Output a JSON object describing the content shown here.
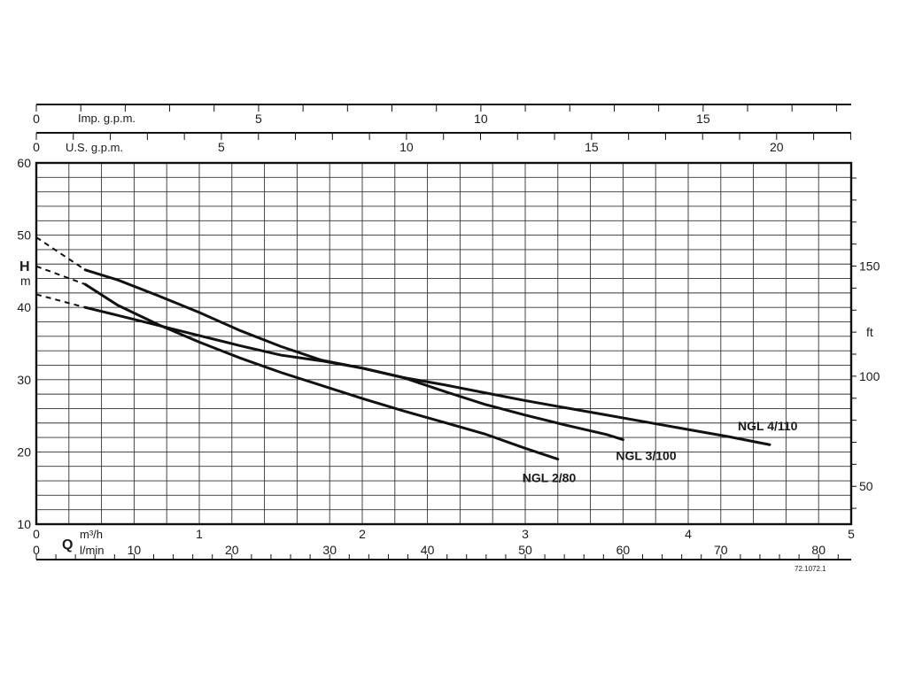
{
  "chart_data": {
    "type": "line",
    "title": "",
    "code": "72.1072.1",
    "grid": true,
    "xlabel": {
      "symbol": "Q",
      "unit_m3h": "m³/h",
      "unit_lmin": "l/min"
    },
    "ylabel": {
      "symbol": "H",
      "unit": "m"
    },
    "y2label": "ft",
    "xlim": [
      0,
      5
    ],
    "ylim": [
      10,
      60
    ],
    "x_ticks": [
      0,
      1,
      2,
      3,
      4,
      5
    ],
    "y_ticks": [
      10,
      20,
      30,
      40,
      50,
      60
    ],
    "lmin_ticks": [
      0,
      10,
      20,
      30,
      40,
      50,
      60,
      70,
      80
    ],
    "usgpm_ticks": [
      0,
      5,
      10,
      15,
      20
    ],
    "usgpm_label": "U.S. g.p.m.",
    "impgpm_ticks": [
      0,
      5,
      10,
      15
    ],
    "impgpm_label": "Imp. g.p.m.",
    "ft_ticks": [
      50,
      100,
      150
    ],
    "series": [
      {
        "name": "NGL 2/80",
        "x": [
          0.3,
          0.5,
          0.75,
          1.0,
          1.25,
          1.5,
          1.75,
          2.0,
          2.25,
          2.5,
          2.75,
          3.0,
          3.2
        ],
        "y": [
          43.2,
          40.3,
          37.6,
          35.2,
          33.0,
          31.0,
          29.2,
          27.4,
          25.7,
          24.1,
          22.5,
          20.5,
          19.0
        ],
        "extrapolated": {
          "x": [
            0,
            0.3
          ],
          "y": [
            45.7,
            43.2
          ]
        }
      },
      {
        "name": "NGL 3/100",
        "x": [
          0.3,
          0.5,
          0.75,
          1.0,
          1.25,
          1.5,
          1.75,
          2.0,
          2.25,
          2.5,
          2.75,
          3.0,
          3.25,
          3.5,
          3.6
        ],
        "y": [
          45.2,
          43.8,
          41.6,
          39.3,
          36.8,
          34.6,
          32.7,
          31.6,
          30.3,
          28.4,
          26.6,
          25.1,
          23.7,
          22.4,
          21.7
        ],
        "extrapolated": {
          "x": [
            0,
            0.3
          ],
          "y": [
            49.7,
            45.2
          ]
        }
      },
      {
        "name": "NGL 4/110",
        "x": [
          0.3,
          0.5,
          0.75,
          1.0,
          1.25,
          1.5,
          1.75,
          2.0,
          2.25,
          2.5,
          2.75,
          3.0,
          3.25,
          3.5,
          3.75,
          4.0,
          4.25,
          4.5
        ],
        "y": [
          40.0,
          38.9,
          37.5,
          36.1,
          34.7,
          33.4,
          32.6,
          31.6,
          30.3,
          29.3,
          28.2,
          27.1,
          26.1,
          25.1,
          24.1,
          23.1,
          22.1,
          21.0
        ],
        "extrapolated": {
          "x": [
            0,
            0.3
          ],
          "y": [
            41.8,
            40.0
          ]
        }
      }
    ]
  }
}
